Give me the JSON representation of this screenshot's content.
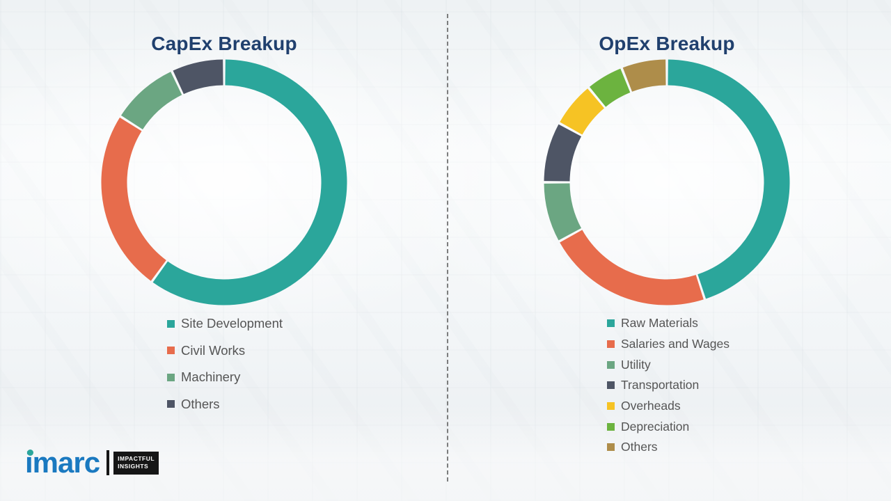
{
  "chart_data": [
    {
      "type": "pie",
      "subtype": "donut",
      "title": "CapEx Breakup",
      "labels": [
        "Site Development",
        "Civil Works",
        "Machinery",
        "Others"
      ],
      "values": [
        60,
        24,
        9,
        7
      ],
      "colors": [
        "#2BA69B",
        "#E76C4C",
        "#6BA682",
        "#4E5565"
      ],
      "legend_position": "below",
      "start_angle": "top",
      "direction": "clockwise"
    },
    {
      "type": "pie",
      "subtype": "donut",
      "title": "OpEx Breakup",
      "labels": [
        "Raw Materials",
        "Salaries and Wages",
        "Utility",
        "Transportation",
        "Overheads",
        "Depreciation",
        "Others"
      ],
      "values": [
        45,
        22,
        8,
        8,
        6,
        5,
        6
      ],
      "colors": [
        "#2BA69B",
        "#E76C4C",
        "#6BA682",
        "#4E5565",
        "#F6C324",
        "#6CB33F",
        "#AE8D4A"
      ],
      "legend_position": "below",
      "start_angle": "top",
      "direction": "clockwise"
    }
  ],
  "logo": {
    "brand": "imarc",
    "tagline_line1": "IMPACTFUL",
    "tagline_line2": "INSIGHTS",
    "brand_color": "#1A79C0",
    "dot_color": "#2BA69B"
  },
  "theme": {
    "title_color": "#20406E",
    "legend_text_color": "#555555",
    "divider_color": "#5f5f5f"
  }
}
